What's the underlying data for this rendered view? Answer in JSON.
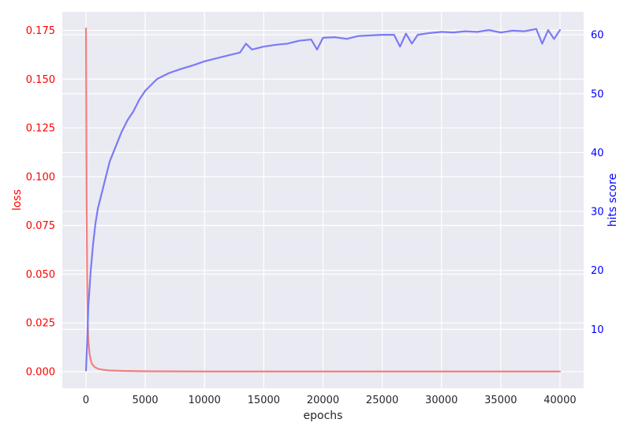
{
  "chart_data": {
    "type": "line",
    "title": "",
    "xlabel": "epochs",
    "ylabel_left": "loss",
    "ylabel_right": "hits score",
    "xlim": [
      -2000,
      42000
    ],
    "ylim_left": [
      -0.0085,
      0.1845
    ],
    "ylim_right": [
      0.0,
      63.9
    ],
    "grid": true,
    "x_ticks": [
      0,
      5000,
      10000,
      15000,
      20000,
      25000,
      30000,
      35000,
      40000
    ],
    "x_tick_labels": [
      "0",
      "5000",
      "10000",
      "15000",
      "20000",
      "25000",
      "30000",
      "35000",
      "40000"
    ],
    "y_left_ticks": [
      0.0,
      0.025,
      0.05,
      0.075,
      0.1,
      0.125,
      0.15,
      0.175
    ],
    "y_left_tick_labels": [
      "0.000",
      "0.025",
      "0.050",
      "0.075",
      "0.100",
      "0.125",
      "0.150",
      "0.175"
    ],
    "y_right_ticks": [
      10,
      20,
      30,
      40,
      50,
      60
    ],
    "y_right_tick_labels": [
      "10",
      "20",
      "30",
      "40",
      "50",
      "60"
    ],
    "colors": {
      "loss": "#f08080",
      "hits": "#7b7bf5",
      "left_axis_text": "#ff0000",
      "right_axis_text": "#0000ff",
      "plot_background": "#eaeaf2",
      "grid": "#ffffff"
    },
    "series": [
      {
        "axis": "left",
        "x": [
          0,
          50,
          100,
          150,
          200,
          300,
          400,
          500,
          700,
          1000,
          1500,
          2000,
          3000,
          5000,
          10000,
          20000,
          30000,
          40000
        ],
        "values": [
          0.176,
          0.09,
          0.045,
          0.025,
          0.016,
          0.009,
          0.006,
          0.004,
          0.0025,
          0.0015,
          0.0009,
          0.0006,
          0.0004,
          0.0002,
          0.0001,
          0.0001,
          0.0001,
          0.0001
        ]
      },
      {
        "axis": "right",
        "x": [
          0,
          100,
          200,
          400,
          600,
          800,
          1000,
          1500,
          2000,
          2500,
          3000,
          3500,
          4000,
          4500,
          5000,
          6000,
          7000,
          8000,
          9000,
          10000,
          11000,
          12000,
          13000,
          13500,
          14000,
          15000,
          16000,
          17000,
          18000,
          19000,
          19500,
          20000,
          21000,
          22000,
          23000,
          24000,
          25000,
          26000,
          26500,
          27000,
          27500,
          28000,
          29000,
          30000,
          31000,
          32000,
          33000,
          34000,
          35000,
          36000,
          37000,
          38000,
          38500,
          39000,
          39500,
          40000
        ],
        "values": [
          3,
          8,
          14,
          20,
          24.5,
          28,
          30.5,
          34.5,
          38.5,
          41,
          43.5,
          45.5,
          47,
          49,
          50.5,
          52.5,
          53.5,
          54.2,
          54.8,
          55.5,
          56,
          56.5,
          57,
          58.5,
          57.5,
          58,
          58.3,
          58.5,
          59,
          59.2,
          57.5,
          59.5,
          59.6,
          59.3,
          59.8,
          59.9,
          60,
          60,
          58,
          60.2,
          58.5,
          60,
          60.3,
          60.5,
          60.4,
          60.6,
          60.5,
          60.8,
          60.4,
          60.7,
          60.6,
          61,
          58.5,
          60.8,
          59.3,
          60.8
        ]
      }
    ]
  }
}
